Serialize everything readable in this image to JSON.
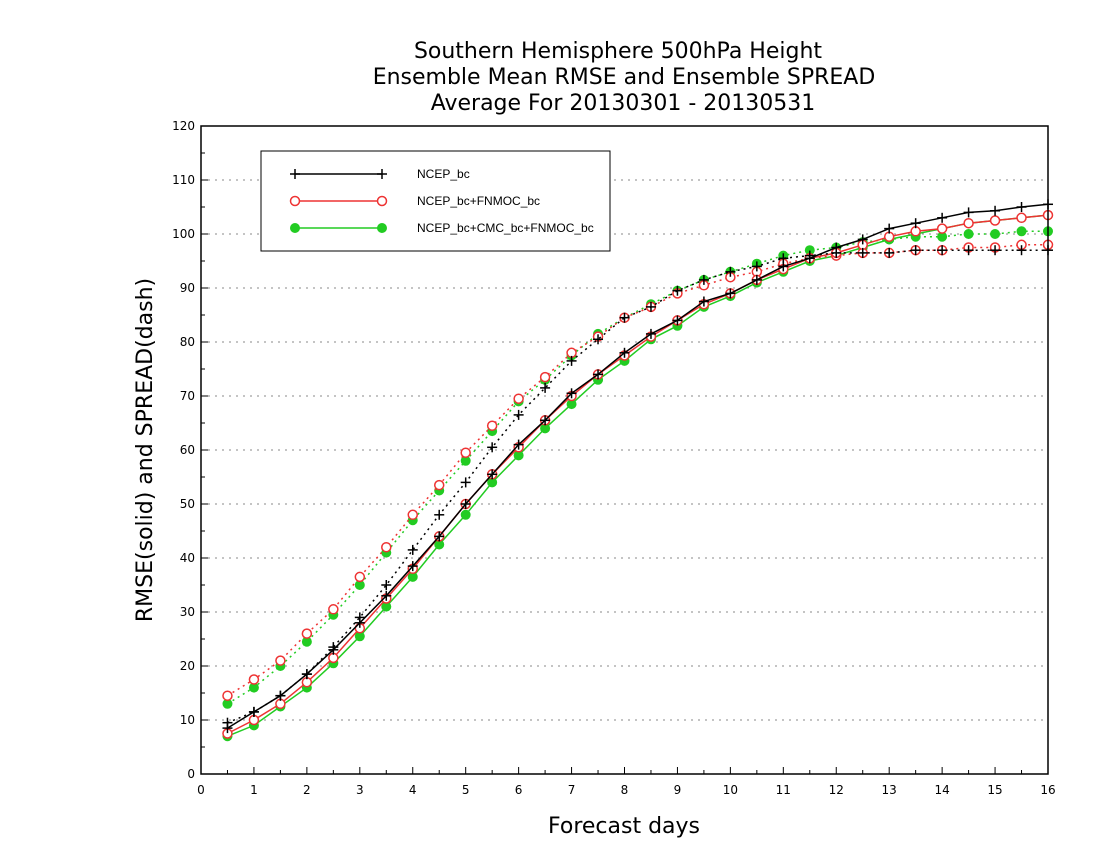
{
  "chart_data": {
    "type": "line",
    "title": [
      "Southern Hemisphere 500hPa Height",
      "Ensemble Mean RMSE and Ensemble SPREAD",
      "Average For 20130301 - 20130531"
    ],
    "xlabel": "Forecast days",
    "ylabel": "RMSE(solid) and SPREAD(dash)",
    "xlim": [
      0,
      16
    ],
    "ylim": [
      0,
      120
    ],
    "xticks": [
      0,
      1,
      2,
      3,
      4,
      5,
      6,
      7,
      8,
      9,
      10,
      11,
      12,
      13,
      14,
      15,
      16
    ],
    "yticks": [
      0,
      10,
      20,
      30,
      40,
      50,
      60,
      70,
      80,
      90,
      100,
      110,
      120
    ],
    "grid": "horizontal dotted",
    "legend_position": "top-left",
    "x": [
      0.5,
      1,
      1.5,
      2,
      2.5,
      3,
      3.5,
      4,
      4.5,
      5,
      5.5,
      6,
      6.5,
      7,
      7.5,
      8,
      8.5,
      9,
      9.5,
      10,
      10.5,
      11,
      11.5,
      12,
      12.5,
      13,
      13.5,
      14,
      14.5,
      15,
      15.5,
      16
    ],
    "series": [
      {
        "name": "NCEP_bc",
        "color": "#000000",
        "marker": "plus",
        "rmse": [
          8.5,
          11.5,
          14.5,
          18.5,
          23,
          28,
          33,
          38.5,
          44,
          50,
          55.5,
          61,
          65.5,
          70.5,
          74,
          78,
          81.5,
          84,
          87.5,
          89,
          91.5,
          94,
          95.5,
          97.5,
          99,
          101,
          102,
          103,
          104,
          104.3,
          105,
          105.5
        ],
        "spread": [
          9.5,
          11.5,
          14.5,
          18.5,
          23.5,
          29,
          35,
          41.5,
          48,
          54,
          60.5,
          66.5,
          71.5,
          76.5,
          80.5,
          84.5,
          86.5,
          89.5,
          91.5,
          93,
          94,
          95.5,
          96,
          96.5,
          96.5,
          96.5,
          97,
          97,
          97,
          97,
          97,
          97
        ]
      },
      {
        "name": "NCEP_bc+FNMOC_bc",
        "color": "#ee3333",
        "marker": "circle-open",
        "rmse": [
          7.5,
          10,
          13,
          17,
          21.5,
          27,
          32.5,
          38,
          44,
          50,
          55.5,
          60.5,
          65.5,
          70,
          74,
          77.5,
          81,
          84,
          87,
          89,
          91.5,
          93.5,
          95.5,
          96.5,
          98,
          99.5,
          100.5,
          101,
          102,
          102.5,
          103,
          103.5
        ],
        "spread": [
          14.5,
          17.5,
          21,
          26,
          30.5,
          36.5,
          42,
          48,
          53.5,
          59.5,
          64.5,
          69.5,
          73.5,
          78,
          81,
          84.5,
          86.5,
          89,
          90.5,
          92,
          93,
          94.5,
          95.5,
          96,
          96.5,
          96.5,
          97,
          97,
          97.5,
          97.5,
          98,
          98
        ]
      },
      {
        "name": "NCEP_bc+CMC_bc+FNMOC_bc",
        "color": "#22cc22",
        "marker": "circle-filled",
        "rmse": [
          7,
          9,
          12.5,
          16,
          20.5,
          25.5,
          31,
          36.5,
          42.5,
          48,
          54,
          59,
          64,
          68.5,
          73,
          76.5,
          80.5,
          83,
          86.5,
          88.5,
          91,
          93,
          95,
          96,
          97.5,
          99,
          100,
          101,
          102,
          102.5,
          103,
          103.5
        ],
        "spread": [
          13,
          16,
          20,
          24.5,
          29.5,
          35,
          41,
          47,
          52.5,
          58,
          63.5,
          69,
          73,
          77.5,
          81.5,
          84.5,
          87,
          89.5,
          91.5,
          93,
          94.5,
          96,
          97,
          97.5,
          98.5,
          99,
          99.5,
          99.5,
          100,
          100,
          100.5,
          100.5
        ]
      }
    ]
  }
}
